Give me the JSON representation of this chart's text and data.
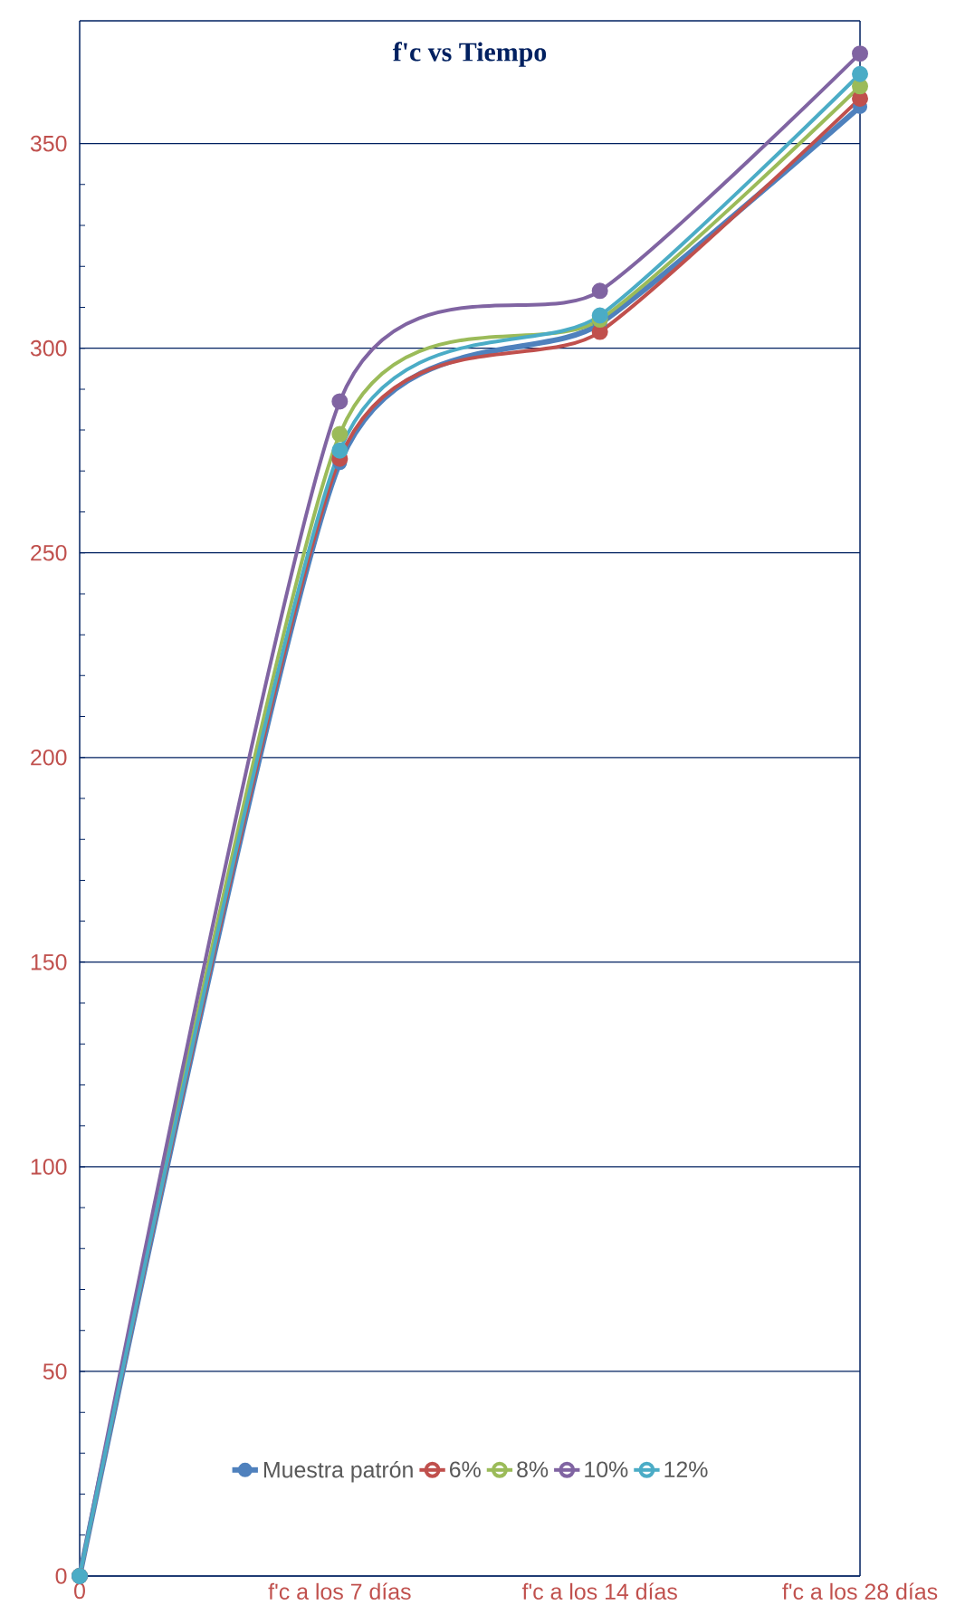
{
  "chart_data": {
    "type": "line",
    "title": "f'c vs Tiempo",
    "categories": [
      "0",
      "f'c a los 7 días",
      "f'c a los 14 días",
      "f'c a los 28 días"
    ],
    "series": [
      {
        "name": "Muestra patrón",
        "color": "#4f81bd",
        "values": [
          0,
          272,
          306,
          359
        ]
      },
      {
        "name": "6%",
        "color": "#c0504d",
        "values": [
          0,
          273,
          304,
          361
        ]
      },
      {
        "name": "8%",
        "color": "#9bbb59",
        "values": [
          0,
          279,
          307,
          364
        ]
      },
      {
        "name": "10%",
        "color": "#8064a2",
        "values": [
          0,
          287,
          314,
          372
        ]
      },
      {
        "name": "12%",
        "color": "#4bacc6",
        "values": [
          0,
          275,
          308,
          367
        ]
      }
    ],
    "ylim": [
      0,
      380
    ],
    "yticks": [
      0,
      50,
      100,
      150,
      200,
      250,
      300,
      350
    ],
    "grid": "y",
    "legend": "bottom",
    "marker": "circle",
    "line_style": "solid"
  }
}
